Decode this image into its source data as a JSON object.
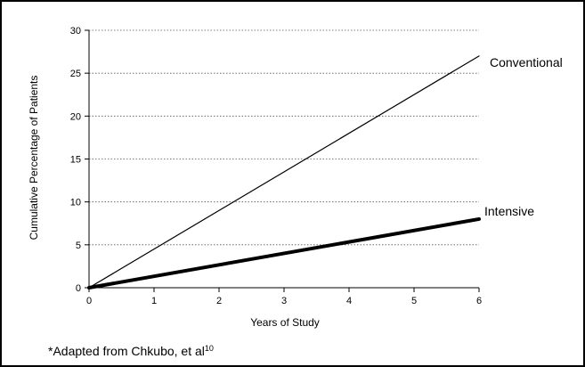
{
  "chart_data": {
    "type": "line",
    "xlabel": "Years of Study",
    "ylabel": "Cumulative Percentage of Patients",
    "xlim": [
      0,
      6
    ],
    "ylim": [
      0,
      30
    ],
    "xticks": [
      0,
      1,
      2,
      3,
      4,
      5,
      6
    ],
    "yticks": [
      0,
      5,
      10,
      15,
      20,
      25,
      30
    ],
    "grid": "horizontal dotted",
    "series": [
      {
        "name": "Conventional",
        "x": [
          0,
          6
        ],
        "y": [
          0,
          27
        ],
        "color": "#000000",
        "line_weight": "thin"
      },
      {
        "name": "Intensive",
        "x": [
          0,
          6
        ],
        "y": [
          0,
          8
        ],
        "color": "#000000",
        "line_weight": "thick"
      }
    ]
  },
  "footnote": {
    "text": "*Adapted from Chkubo, et al",
    "superscript": "10"
  }
}
